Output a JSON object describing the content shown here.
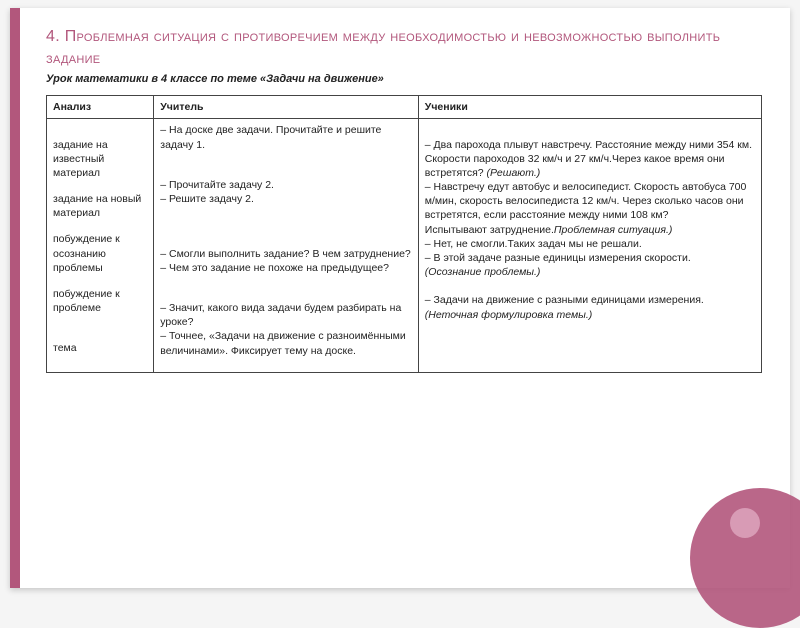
{
  "title": "4. Проблемная ситуация с противоречием между необходимостью и невозможностью выполнить задание",
  "subtitle": "Урок математики в 4 классе по теме «Задачи на движение»",
  "headers": {
    "analysis": "Анализ",
    "teacher": "Учитель",
    "students": "Ученики"
  },
  "analysis": {
    "a1": "задание на известный материал",
    "a2": "задание на новый материал",
    "a3": "побуждение к осознанию проблемы",
    "a4": "побуждение к проблеме",
    "a5": "тема"
  },
  "teacher": {
    "t1": "– На доске две задачи. Прочитайте и решите задачу 1.",
    "t2": "– Прочитайте задачу 2.",
    "t3": "– Решите задачу 2.",
    "t4": "– Смогли выполнить задание?  В чем затруднение?",
    "t5": "– Чем это задание не похоже на предыдущее?",
    "t6": "– Значит, какого вида задачи будем разбирать на уроке?",
    "t7": "– Точнее, «Задачи на движение с разноимёнными величинами». Фиксирует тему на доске."
  },
  "students": {
    "s1a": "– Два парохода плывут навстречу. Расстояние между ними 354 км. Скорости пароходов 32 км/ч и 27 км/ч.Через какое время они встретятся? ",
    "s1b": "(Решают.)",
    "s2": "– Навстречу едут автобус и велосипедист. Скорость автобуса 700 м/мин, скорость велосипедиста 12 км/ч. Через сколько часов они встретятся, если расстояние между ними 108 км?",
    "s3a": "Испытывают затруднение.",
    "s3b": "Проблемная ситуация.)",
    "s4": "– Нет, не смогли.Таких задач  мы не решали.",
    "s5": "– В этой задаче разные единицы измерения скорости.",
    "s6": "(Осознание проблемы.)",
    "s7": "– Задачи на движение с разными единицами измерения.",
    "s8": "(Неточная формулировка   темы.)"
  },
  "colors": {
    "accent": "#b2577c",
    "text": "#222222",
    "border": "#444444",
    "bg": "#ffffff"
  }
}
